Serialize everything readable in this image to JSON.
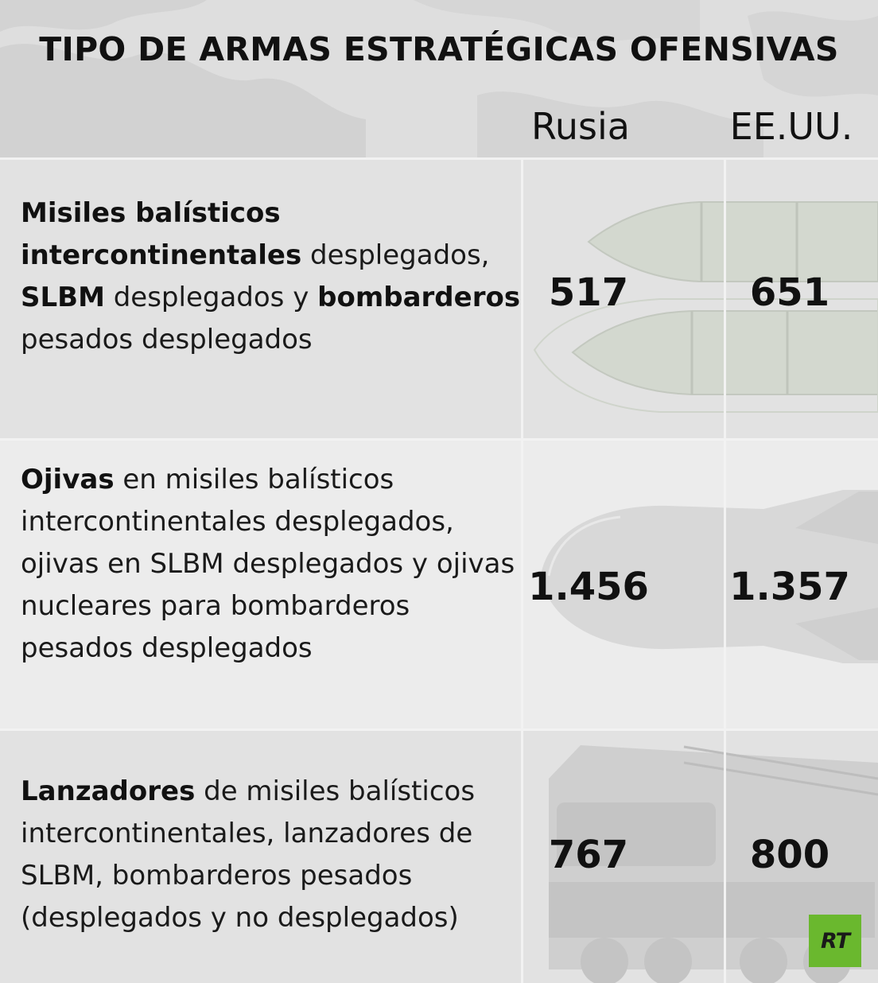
{
  "title": "TIPO DE ARMAS ESTRATÉGICAS OFENSIVAS",
  "columns": {
    "rusia": "Rusia",
    "usa": "EE.UU."
  },
  "rows": [
    {
      "description": [
        {
          "text": "Misiles balísticos intercontinentales",
          "bold": true
        },
        {
          "text": " desplegados, ",
          "bold": false
        },
        {
          "text": "SLBM",
          "bold": true
        },
        {
          "text": " desplegados y ",
          "bold": false
        },
        {
          "text": "bombarderos",
          "bold": true
        },
        {
          "text": " pesados desplegados",
          "bold": false
        }
      ],
      "rusia": "517",
      "usa": "651"
    },
    {
      "description": [
        {
          "text": "Ojivas",
          "bold": true
        },
        {
          "text": " en misiles balísticos intercontinentales desplegados, ojivas en SLBM desplegados y ojivas nucleares para bombarderos pesados desplegados",
          "bold": false
        }
      ],
      "rusia": "1.456",
      "usa": "1.357"
    },
    {
      "description": [
        {
          "text": "Lanzadores",
          "bold": true
        },
        {
          "text": " de misiles balísticos intercontinentales, lanzadores de SLBM, bombarderos pesados (desplegados y no desplegados)",
          "bold": false
        }
      ],
      "rusia": "767",
      "usa": "800"
    }
  ],
  "logo": "RT",
  "chart_data": {
    "type": "table",
    "title": "TIPO DE ARMAS ESTRATÉGICAS OFENSIVAS",
    "columns": [
      "Rusia",
      "EE.UU."
    ],
    "rows": [
      {
        "category": "Misiles balísticos intercontinentales desplegados, SLBM desplegados y bombarderos pesados desplegados",
        "values": [
          517,
          651
        ]
      },
      {
        "category": "Ojivas en misiles balísticos intercontinentales desplegados, ojivas en SLBM desplegados y ojivas nucleares para bombarderos pesados desplegados",
        "values": [
          1456,
          1357
        ]
      },
      {
        "category": "Lanzadores de misiles balísticos intercontinentales, lanzadores de SLBM, bombarderos pesados (desplegados y no desplegados)",
        "values": [
          767,
          800
        ]
      }
    ]
  }
}
